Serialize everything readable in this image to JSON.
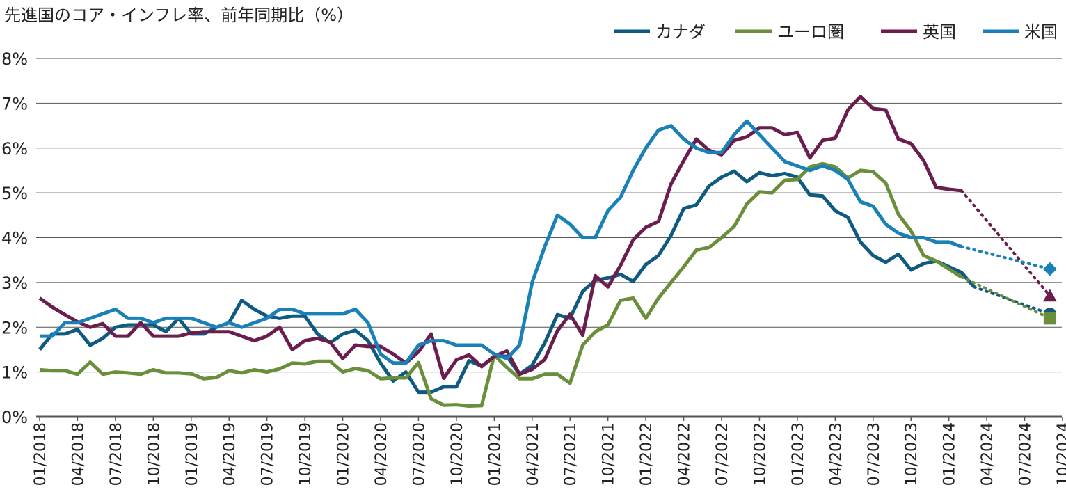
{
  "chart_data": {
    "type": "line",
    "title": "先進国のコア・インフレ率、前年同期比（%）",
    "xlabel": "",
    "ylabel": "",
    "ylim": [
      0,
      8
    ],
    "yticks": [
      0,
      1,
      2,
      3,
      4,
      5,
      6,
      7,
      8
    ],
    "ytick_labels": [
      "0%",
      "1%",
      "2%",
      "3%",
      "4%",
      "5%",
      "6%",
      "7%",
      "8%"
    ],
    "xtick_labels": [
      "01/2018",
      "04/2018",
      "07/2018",
      "10/2018",
      "01/2019",
      "04/2019",
      "07/2019",
      "10/2019",
      "01/2020",
      "04/2020",
      "07/2020",
      "10/2020",
      "01/2021",
      "04/2021",
      "07/2021",
      "10/2021",
      "01/2022",
      "04/2022",
      "07/2022",
      "10/2022",
      "01/2023",
      "04/2023",
      "07/2023",
      "10/2023",
      "01/2024",
      "04/2024",
      "07/2024",
      "10/2024"
    ],
    "x_start": "01/2018",
    "x_end": "10/2024",
    "grid": true,
    "legend_position": "top-right",
    "series": [
      {
        "name": "カナダ",
        "color": "#0e5a80",
        "values": [
          1.5,
          1.85,
          1.85,
          1.95,
          1.6,
          1.75,
          2.0,
          2.05,
          2.05,
          2.05,
          1.9,
          2.2,
          1.85,
          1.85,
          2.0,
          2.1,
          2.6,
          2.4,
          2.25,
          2.2,
          2.25,
          2.25,
          1.85,
          1.65,
          1.85,
          1.93,
          1.7,
          1.2,
          0.8,
          1.0,
          0.55,
          0.55,
          0.67,
          0.67,
          1.25,
          1.13,
          1.35,
          1.35,
          0.95,
          1.15,
          1.65,
          2.28,
          2.2,
          2.8,
          3.05,
          3.1,
          3.18,
          3.02,
          3.4,
          3.6,
          4.05,
          4.65,
          4.73,
          5.15,
          5.35,
          5.48,
          5.25,
          5.45,
          5.38,
          5.43,
          5.35,
          4.95,
          4.93,
          4.6,
          4.45,
          3.9,
          3.6,
          3.45,
          3.63,
          3.28,
          3.42,
          3.48,
          3.35,
          3.22,
          2.9
        ],
        "forecast": {
          "end": 2.3,
          "marker": "circle"
        }
      },
      {
        "name": "ユーロ圏",
        "color": "#6b8e3a",
        "values": [
          1.05,
          1.03,
          1.03,
          0.95,
          1.22,
          0.95,
          1.0,
          0.98,
          0.95,
          1.05,
          0.98,
          0.98,
          0.96,
          0.85,
          0.88,
          1.03,
          0.98,
          1.05,
          1.0,
          1.07,
          1.2,
          1.18,
          1.24,
          1.24,
          1.0,
          1.08,
          1.03,
          0.85,
          0.87,
          0.87,
          1.21,
          0.4,
          0.26,
          0.27,
          0.24,
          0.25,
          1.38,
          1.1,
          0.85,
          0.85,
          0.95,
          0.95,
          0.75,
          1.6,
          1.9,
          2.05,
          2.6,
          2.65,
          2.2,
          2.65,
          3.0,
          3.35,
          3.72,
          3.78,
          4.0,
          4.25,
          4.75,
          5.02,
          5.0,
          5.28,
          5.3,
          5.58,
          5.65,
          5.58,
          5.33,
          5.5,
          5.47,
          5.22,
          4.52,
          4.15,
          3.6,
          3.48,
          3.3,
          3.12
        ],
        "forecast": {
          "end": 2.2,
          "marker": "square"
        }
      },
      {
        "name": "英国",
        "color": "#6b1d4e",
        "values": [
          2.65,
          2.45,
          2.28,
          2.12,
          2.0,
          2.08,
          1.8,
          1.8,
          2.1,
          1.8,
          1.8,
          1.8,
          1.87,
          1.9,
          1.9,
          1.9,
          1.8,
          1.7,
          1.8,
          2.0,
          1.5,
          1.7,
          1.75,
          1.67,
          1.3,
          1.6,
          1.57,
          1.57,
          1.4,
          1.2,
          1.45,
          1.85,
          0.86,
          1.27,
          1.38,
          1.12,
          1.35,
          1.47,
          0.95,
          1.06,
          1.28,
          1.92,
          2.29,
          1.82,
          3.15,
          2.9,
          3.38,
          3.95,
          4.23,
          4.36,
          5.2,
          5.72,
          6.2,
          5.95,
          5.85,
          6.17,
          6.25,
          6.45,
          6.45,
          6.3,
          6.35,
          5.78,
          6.17,
          6.22,
          6.85,
          7.15,
          6.88,
          6.85,
          6.2,
          6.1,
          5.72,
          5.12,
          5.08,
          5.05
        ],
        "forecast": {
          "end": 2.7,
          "marker": "triangle"
        }
      },
      {
        "name": "米国",
        "color": "#1a80b8",
        "values": [
          1.8,
          1.8,
          2.1,
          2.1,
          2.2,
          2.3,
          2.4,
          2.2,
          2.2,
          2.1,
          2.2,
          2.2,
          2.2,
          2.1,
          2.0,
          2.1,
          2.0,
          2.1,
          2.2,
          2.4,
          2.4,
          2.3,
          2.3,
          2.3,
          2.3,
          2.4,
          2.1,
          1.4,
          1.2,
          1.2,
          1.6,
          1.7,
          1.7,
          1.6,
          1.6,
          1.6,
          1.4,
          1.3,
          1.6,
          3.0,
          3.8,
          4.5,
          4.3,
          4.0,
          4.0,
          4.6,
          4.9,
          5.5,
          6.0,
          6.4,
          6.5,
          6.2,
          6.0,
          5.9,
          5.9,
          6.3,
          6.6,
          6.3,
          6.0,
          5.7,
          5.6,
          5.5,
          5.6,
          5.5,
          5.3,
          4.8,
          4.7,
          4.3,
          4.1,
          4.0,
          4.0,
          3.9,
          3.9,
          3.8
        ],
        "forecast": {
          "end": 3.3,
          "marker": "diamond"
        }
      }
    ]
  }
}
